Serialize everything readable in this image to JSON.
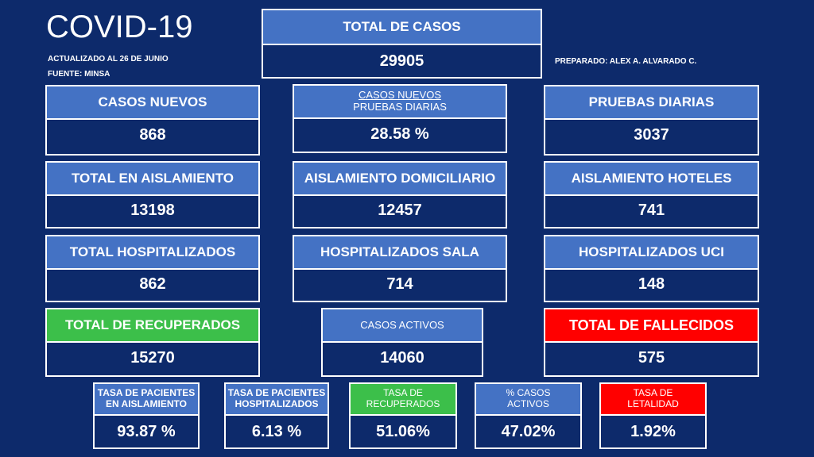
{
  "header": {
    "title": "COVID-19",
    "updated": "ACTUALIZADO  AL 26 DE JUNIO",
    "source": "FUENTE:  MINSA",
    "prepared": "PREPARADO:  ALEX A. ALVARADO  C."
  },
  "colors": {
    "background": "#0d2a6b",
    "header_blue": "#4472c4",
    "header_green": "#3cbf4a",
    "header_red": "#ff0000"
  },
  "total_cases": {
    "label": "TOTAL DE CASOS",
    "value": "29905"
  },
  "row1": {
    "new_cases": {
      "label": "CASOS NUEVOS",
      "value": "868"
    },
    "ratio": {
      "label_1": "CASOS  NUEVOS",
      "label_2": "PRUEBAS  DIARIAS",
      "value": "28.58 %"
    },
    "daily_tests": {
      "label": "PRUEBAS DIARIAS",
      "value": "3037"
    }
  },
  "row2": {
    "total_isolation": {
      "label": "TOTAL EN AISLAMIENTO",
      "value": "13198"
    },
    "home_isolation": {
      "label": "AISLAMIENTO DOMICILIARIO",
      "value": "12457"
    },
    "hotel_isolation": {
      "label": "AISLAMIENTO HOTELES",
      "value": "741"
    }
  },
  "row3": {
    "total_hospitalized": {
      "label": "TOTAL HOSPITALIZADOS",
      "value": "862"
    },
    "ward_hospitalized": {
      "label": "HOSPITALIZADOS SALA",
      "value": "714"
    },
    "icu_hospitalized": {
      "label": "HOSPITALIZADOS UCI",
      "value": "148"
    }
  },
  "row4": {
    "recovered": {
      "label": "TOTAL DE RECUPERADOS",
      "value": "15270"
    },
    "active": {
      "label": "CASOS  ACTIVOS",
      "value": "14060"
    },
    "deaths": {
      "label": "TOTAL DE FALLECIDOS",
      "value": "575"
    }
  },
  "rates": {
    "isolation": {
      "label": "TASA DE PACIENTES EN AISLAMIENTO",
      "value": "93.87 %"
    },
    "hospitalized": {
      "label": "TASA DE PACIENTES HOSPITALIZADOS",
      "value": "6.13 %"
    },
    "recovered": {
      "label": "TASA DE RECUPERADOS",
      "value": "51.06%"
    },
    "active": {
      "label": "% CASOS ACTIVOS",
      "value": "47.02%"
    },
    "lethality": {
      "label": "TASA DE LETALIDAD",
      "value": "1.92%"
    }
  }
}
